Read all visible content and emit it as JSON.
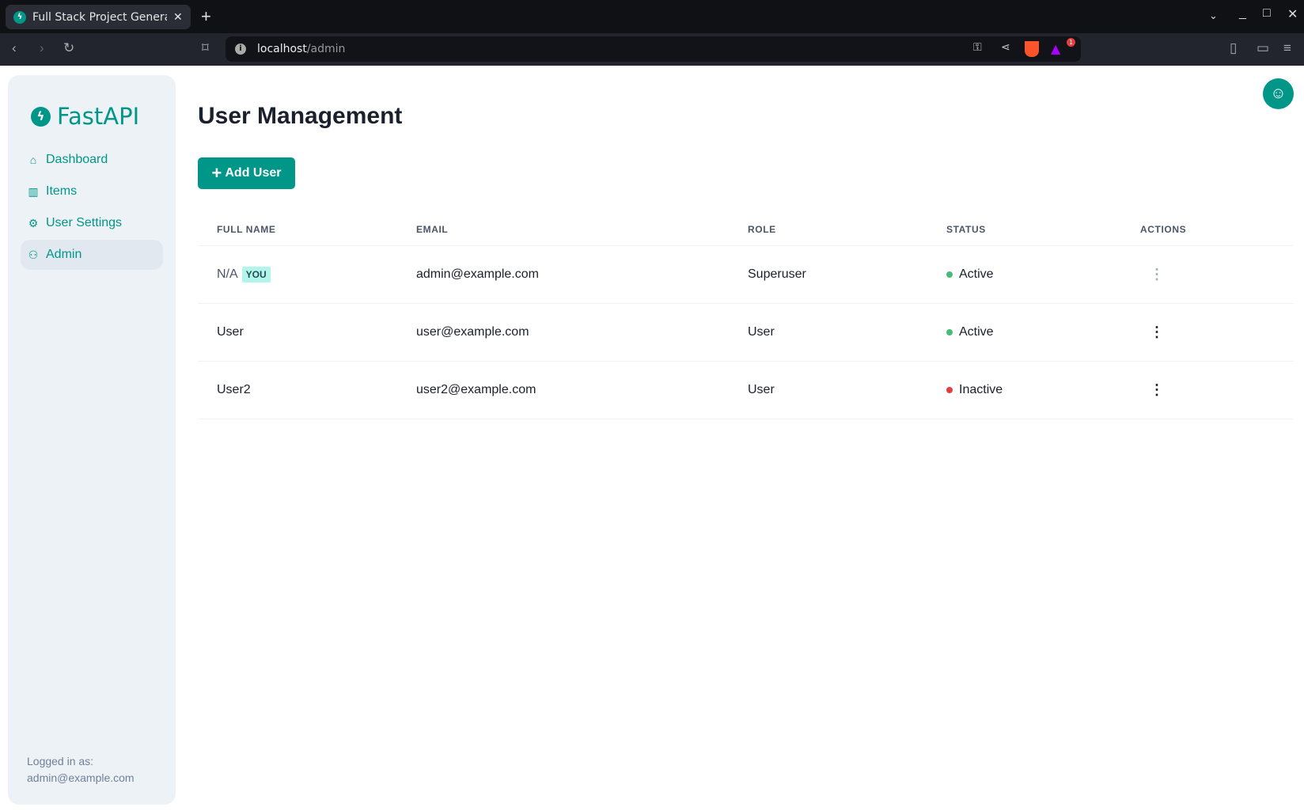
{
  "browser": {
    "tab_title": "Full Stack Project Generator",
    "url_host": "localhost",
    "url_path": "/admin",
    "notification_count": "1"
  },
  "sidebar": {
    "logo": "FastAPI",
    "items": [
      {
        "label": "Dashboard",
        "icon": "home-icon"
      },
      {
        "label": "Items",
        "icon": "briefcase-icon"
      },
      {
        "label": "User Settings",
        "icon": "gear-icon"
      },
      {
        "label": "Admin",
        "icon": "users-icon",
        "active": true
      }
    ],
    "logged_in_label": "Logged in as:",
    "logged_in_email": "admin@example.com"
  },
  "main": {
    "title": "User Management",
    "add_user_label": "Add User",
    "columns": [
      "FULL NAME",
      "EMAIL",
      "ROLE",
      "STATUS",
      "ACTIONS"
    ],
    "you_badge": "YOU",
    "rows": [
      {
        "full_name": "N/A",
        "email": "admin@example.com",
        "role": "Superuser",
        "status": "Active",
        "is_you": true
      },
      {
        "full_name": "User",
        "email": "user@example.com",
        "role": "User",
        "status": "Active"
      },
      {
        "full_name": "User2",
        "email": "user2@example.com",
        "role": "User",
        "status": "Inactive"
      }
    ]
  },
  "colors": {
    "brand": "#009688",
    "active": "#48bb78",
    "inactive": "#e53e3e",
    "sidebar_bg": "#edf2f7"
  }
}
